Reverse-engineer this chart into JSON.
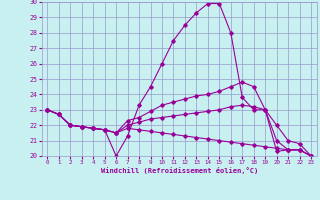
{
  "xlabel": "Windchill (Refroidissement éolien,°C)",
  "x": [
    0,
    1,
    2,
    3,
    4,
    5,
    6,
    7,
    8,
    9,
    10,
    11,
    12,
    13,
    14,
    15,
    16,
    17,
    18,
    19,
    20,
    21,
    22,
    23
  ],
  "line1": [
    23.0,
    22.7,
    22.0,
    21.9,
    21.8,
    21.7,
    20.0,
    21.3,
    23.3,
    24.5,
    26.0,
    27.5,
    28.5,
    29.3,
    29.9,
    29.9,
    28.0,
    23.8,
    23.0,
    23.0,
    20.3,
    20.4,
    20.4,
    20.0
  ],
  "line2": [
    23.0,
    22.7,
    22.0,
    21.9,
    21.8,
    21.7,
    21.5,
    22.3,
    22.5,
    22.9,
    23.3,
    23.5,
    23.7,
    23.9,
    24.0,
    24.2,
    24.5,
    24.8,
    24.5,
    23.0,
    21.0,
    20.4,
    20.4,
    20.0
  ],
  "line3": [
    23.0,
    22.7,
    22.0,
    21.9,
    21.8,
    21.7,
    21.5,
    22.0,
    22.2,
    22.4,
    22.5,
    22.6,
    22.7,
    22.8,
    22.9,
    23.0,
    23.2,
    23.3,
    23.2,
    23.0,
    22.0,
    21.0,
    20.8,
    20.0
  ],
  "line4": [
    23.0,
    22.7,
    22.0,
    21.9,
    21.8,
    21.7,
    21.5,
    21.8,
    21.7,
    21.6,
    21.5,
    21.4,
    21.3,
    21.2,
    21.1,
    21.0,
    20.9,
    20.8,
    20.7,
    20.6,
    20.5,
    20.4,
    20.4,
    20.0
  ],
  "color": "#990099",
  "bg_color": "#c8f0f0",
  "grid_color": "#9999cc",
  "ylim": [
    20,
    30
  ],
  "xlim": [
    0,
    23
  ],
  "yticks": [
    20,
    21,
    22,
    23,
    24,
    25,
    26,
    27,
    28,
    29,
    30
  ],
  "xticks": [
    0,
    1,
    2,
    3,
    4,
    5,
    6,
    7,
    8,
    9,
    10,
    11,
    12,
    13,
    14,
    15,
    16,
    17,
    18,
    19,
    20,
    21,
    22,
    23
  ]
}
